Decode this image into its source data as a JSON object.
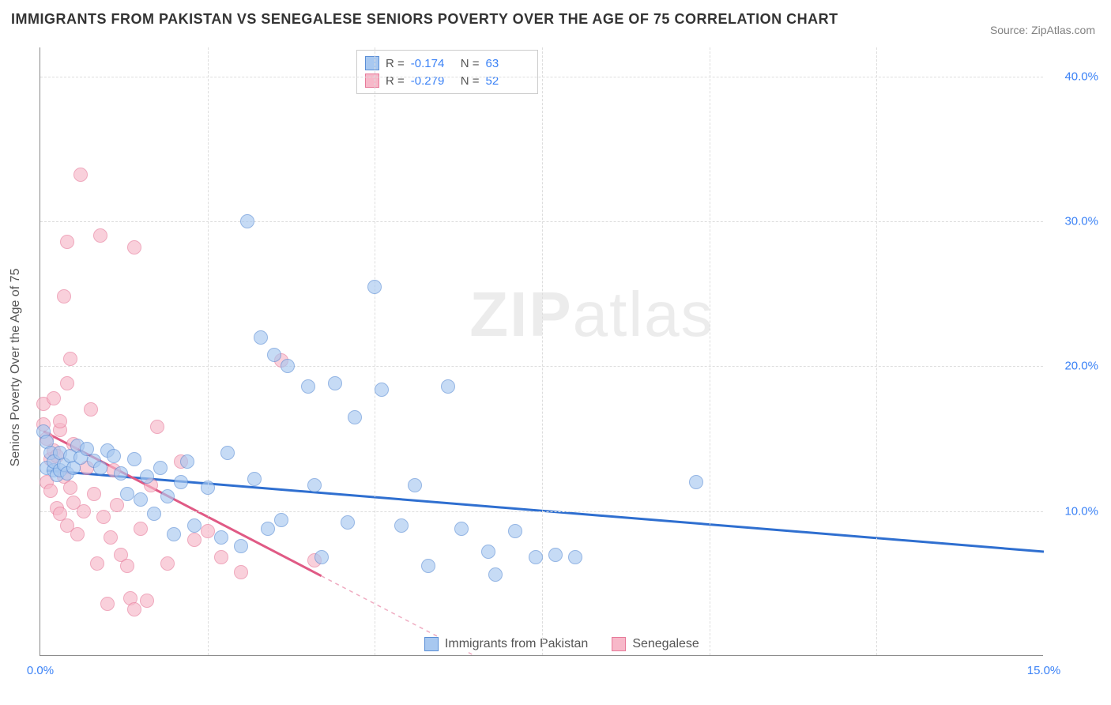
{
  "title": "IMMIGRANTS FROM PAKISTAN VS SENEGALESE SENIORS POVERTY OVER THE AGE OF 75 CORRELATION CHART",
  "source": "Source: ZipAtlas.com",
  "watermark_zip": "ZIP",
  "watermark_atlas": "atlas",
  "ylabel": "Seniors Poverty Over the Age of 75",
  "chart": {
    "type": "scatter",
    "background_color": "#ffffff",
    "grid_color": "#dddddd",
    "axis_color": "#888888",
    "xlim": [
      0,
      15
    ],
    "ylim": [
      0,
      42
    ],
    "yticks": [
      {
        "v": 10,
        "label": "10.0%"
      },
      {
        "v": 20,
        "label": "20.0%"
      },
      {
        "v": 30,
        "label": "30.0%"
      },
      {
        "v": 40,
        "label": "40.0%"
      }
    ],
    "xticks": [
      {
        "v": 0,
        "label": "0.0%"
      },
      {
        "v": 15,
        "label": "15.0%"
      }
    ],
    "vgrid": [
      2.5,
      5.0,
      7.5,
      10.0,
      12.5
    ],
    "point_radius": 9,
    "series": [
      {
        "name": "Immigrants from Pakistan",
        "fill": "#a8c8f0",
        "stroke": "#5b8fd6",
        "trend_color": "#2f6fd0",
        "r": "-0.174",
        "n": "63",
        "trend": {
          "x1": 0.1,
          "y1": 12.8,
          "x2": 15.0,
          "y2": 7.2,
          "dash_from_x": null
        },
        "points": [
          [
            0.05,
            15.5
          ],
          [
            0.1,
            14.8
          ],
          [
            0.1,
            13.0
          ],
          [
            0.15,
            14.0
          ],
          [
            0.2,
            12.8
          ],
          [
            0.2,
            13.4
          ],
          [
            0.25,
            12.5
          ],
          [
            0.3,
            14.0
          ],
          [
            0.3,
            12.8
          ],
          [
            0.35,
            13.2
          ],
          [
            0.4,
            12.6
          ],
          [
            0.45,
            13.8
          ],
          [
            0.5,
            13.0
          ],
          [
            0.55,
            14.5
          ],
          [
            0.6,
            13.7
          ],
          [
            0.7,
            14.3
          ],
          [
            0.8,
            13.5
          ],
          [
            0.9,
            13.0
          ],
          [
            1.0,
            14.2
          ],
          [
            1.1,
            13.8
          ],
          [
            1.2,
            12.6
          ],
          [
            1.3,
            11.2
          ],
          [
            1.4,
            13.6
          ],
          [
            1.5,
            10.8
          ],
          [
            1.6,
            12.4
          ],
          [
            1.7,
            9.8
          ],
          [
            1.8,
            13.0
          ],
          [
            1.9,
            11.0
          ],
          [
            2.0,
            8.4
          ],
          [
            2.1,
            12.0
          ],
          [
            2.2,
            13.4
          ],
          [
            2.3,
            9.0
          ],
          [
            2.5,
            11.6
          ],
          [
            2.7,
            8.2
          ],
          [
            2.8,
            14.0
          ],
          [
            3.0,
            7.6
          ],
          [
            3.1,
            30.0
          ],
          [
            3.2,
            12.2
          ],
          [
            3.3,
            22.0
          ],
          [
            3.4,
            8.8
          ],
          [
            3.5,
            20.8
          ],
          [
            3.6,
            9.4
          ],
          [
            3.7,
            20.0
          ],
          [
            4.0,
            18.6
          ],
          [
            4.1,
            11.8
          ],
          [
            4.2,
            6.8
          ],
          [
            4.4,
            18.8
          ],
          [
            4.6,
            9.2
          ],
          [
            4.7,
            16.5
          ],
          [
            5.0,
            25.5
          ],
          [
            5.1,
            18.4
          ],
          [
            5.4,
            9.0
          ],
          [
            5.6,
            11.8
          ],
          [
            5.8,
            6.2
          ],
          [
            6.1,
            18.6
          ],
          [
            6.3,
            8.8
          ],
          [
            6.7,
            7.2
          ],
          [
            6.8,
            5.6
          ],
          [
            7.1,
            8.6
          ],
          [
            7.4,
            6.8
          ],
          [
            7.7,
            7.0
          ],
          [
            8.0,
            6.8
          ],
          [
            9.8,
            12.0
          ]
        ]
      },
      {
        "name": "Senegalese",
        "fill": "#f7b8c9",
        "stroke": "#e77a9a",
        "trend_color": "#e05a85",
        "r": "-0.279",
        "n": "52",
        "trend": {
          "x1": 0.05,
          "y1": 15.5,
          "x2": 6.5,
          "y2": 0.0,
          "dash_from_x": 4.2
        },
        "points": [
          [
            0.05,
            17.4
          ],
          [
            0.05,
            16.0
          ],
          [
            0.1,
            15.0
          ],
          [
            0.1,
            12.0
          ],
          [
            0.15,
            13.6
          ],
          [
            0.15,
            11.4
          ],
          [
            0.2,
            14.2
          ],
          [
            0.2,
            17.8
          ],
          [
            0.25,
            10.2
          ],
          [
            0.25,
            13.8
          ],
          [
            0.3,
            15.6
          ],
          [
            0.3,
            16.2
          ],
          [
            0.3,
            9.8
          ],
          [
            0.35,
            12.4
          ],
          [
            0.35,
            24.8
          ],
          [
            0.4,
            28.6
          ],
          [
            0.4,
            18.8
          ],
          [
            0.4,
            9.0
          ],
          [
            0.45,
            20.5
          ],
          [
            0.45,
            11.6
          ],
          [
            0.5,
            14.6
          ],
          [
            0.5,
            10.6
          ],
          [
            0.55,
            8.4
          ],
          [
            0.6,
            33.2
          ],
          [
            0.65,
            10.0
          ],
          [
            0.7,
            13.0
          ],
          [
            0.75,
            17.0
          ],
          [
            0.8,
            11.2
          ],
          [
            0.85,
            6.4
          ],
          [
            0.9,
            29.0
          ],
          [
            0.95,
            9.6
          ],
          [
            1.0,
            3.6
          ],
          [
            1.05,
            8.2
          ],
          [
            1.1,
            12.8
          ],
          [
            1.15,
            10.4
          ],
          [
            1.2,
            7.0
          ],
          [
            1.3,
            6.2
          ],
          [
            1.35,
            4.0
          ],
          [
            1.4,
            3.2
          ],
          [
            1.4,
            28.2
          ],
          [
            1.5,
            8.8
          ],
          [
            1.6,
            3.8
          ],
          [
            1.65,
            11.8
          ],
          [
            1.75,
            15.8
          ],
          [
            1.9,
            6.4
          ],
          [
            2.1,
            13.4
          ],
          [
            2.3,
            8.0
          ],
          [
            2.5,
            8.6
          ],
          [
            2.7,
            6.8
          ],
          [
            3.0,
            5.8
          ],
          [
            3.6,
            20.4
          ],
          [
            4.1,
            6.6
          ]
        ]
      }
    ]
  },
  "legend_labels": {
    "r": "R =",
    "n": "N ="
  }
}
